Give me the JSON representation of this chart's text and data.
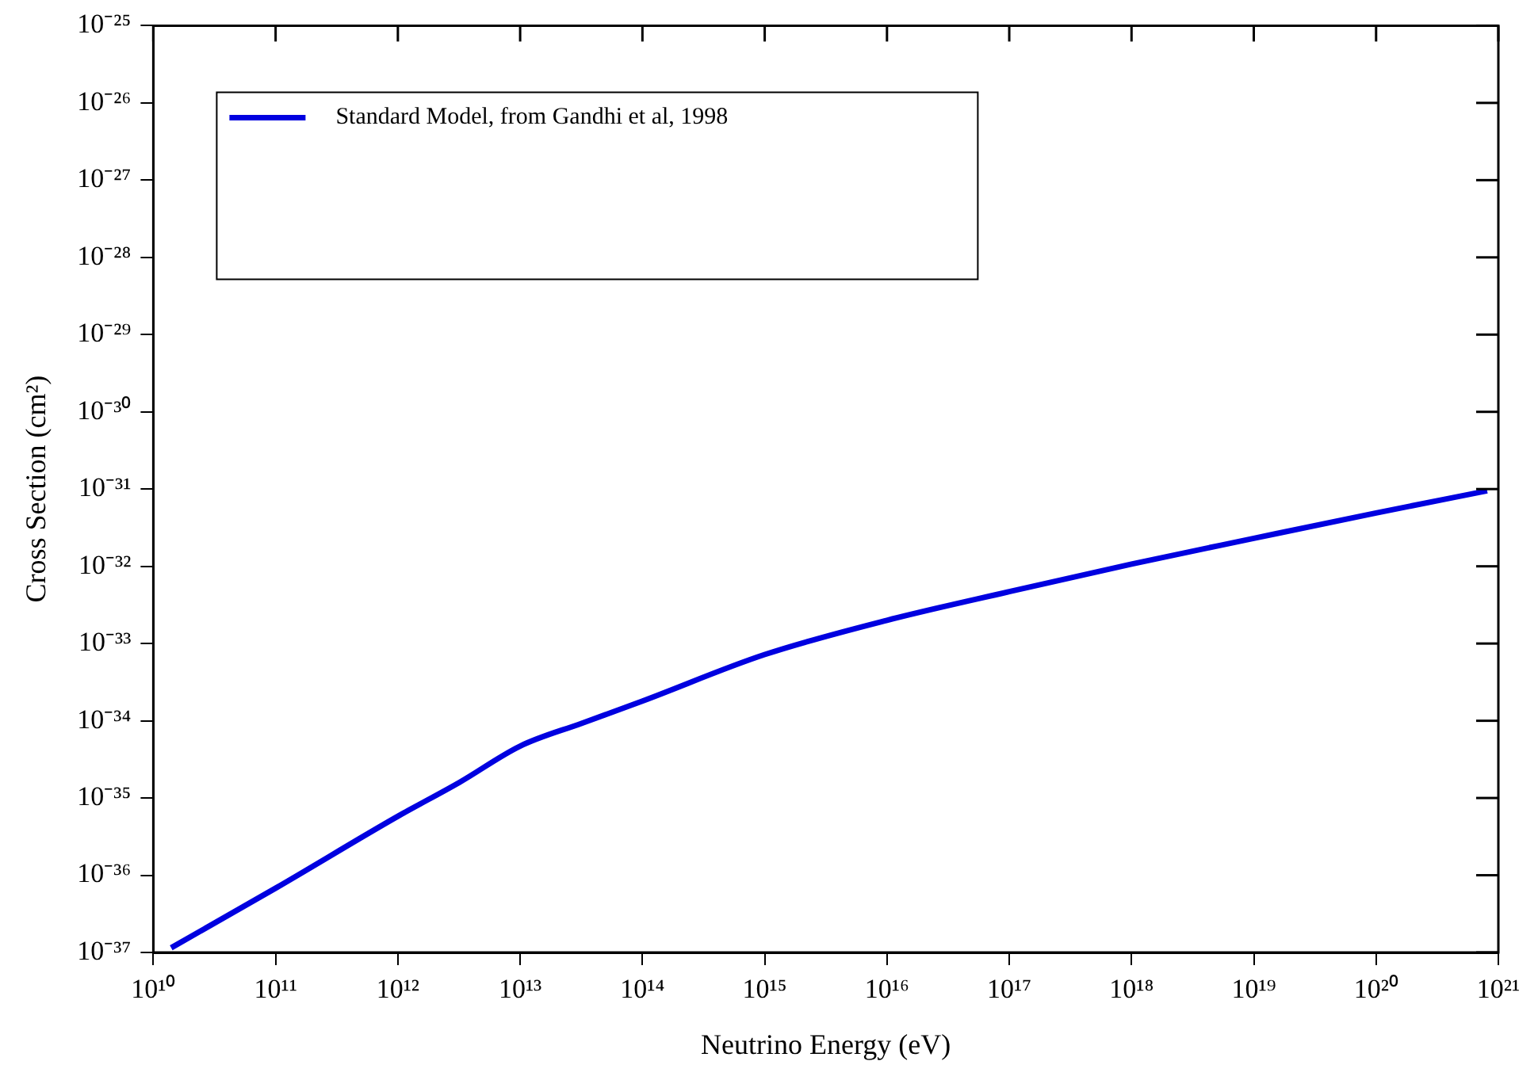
{
  "chart_data": {
    "type": "line",
    "xlabel": "Neutrino Energy (eV)",
    "ylabel": "Cross Section (cm²)",
    "log": "xy",
    "grid": false,
    "legend": "top left",
    "marker": "none",
    "line_style": "solid",
    "xlim": [
      10000000000.0,
      1e+21
    ],
    "ylim": [
      1e-37,
      1e-25
    ],
    "xticks": [
      {
        "value": 10000000000.0,
        "label": "10¹⁰"
      },
      {
        "value": 100000000000.0,
        "label": "10¹¹"
      },
      {
        "value": 1000000000000.0,
        "label": "10¹²"
      },
      {
        "value": 10000000000000.0,
        "label": "10¹³"
      },
      {
        "value": 100000000000000.0,
        "label": "10¹⁴"
      },
      {
        "value": 1000000000000000.0,
        "label": "10¹⁵"
      },
      {
        "value": 1e+16,
        "label": "10¹⁶"
      },
      {
        "value": 1e+17,
        "label": "10¹⁷"
      },
      {
        "value": 1e+18,
        "label": "10¹⁸"
      },
      {
        "value": 1e+19,
        "label": "10¹⁹"
      },
      {
        "value": 1e+20,
        "label": "10²⁰"
      },
      {
        "value": 1e+21,
        "label": "10²¹"
      }
    ],
    "yticks": [
      {
        "value": 1e-37,
        "label": "10⁻³⁷"
      },
      {
        "value": 1e-36,
        "label": "10⁻³⁶"
      },
      {
        "value": 1e-35,
        "label": "10⁻³⁵"
      },
      {
        "value": 1e-34,
        "label": "10⁻³⁴"
      },
      {
        "value": 1e-33,
        "label": "10⁻³³"
      },
      {
        "value": 1e-32,
        "label": "10⁻³²"
      },
      {
        "value": 1e-31,
        "label": "10⁻³¹"
      },
      {
        "value": 1e-30,
        "label": "10⁻³⁰"
      },
      {
        "value": 1e-29,
        "label": "10⁻²⁹"
      },
      {
        "value": 1e-28,
        "label": "10⁻²⁸"
      },
      {
        "value": 1e-27,
        "label": "10⁻²⁷"
      },
      {
        "value": 1e-26,
        "label": "10⁻²⁶"
      },
      {
        "value": 1e-25,
        "label": "10⁻²⁵"
      }
    ],
    "x": [
      14000000000.0,
      100000000000.0,
      1000000000000.0,
      3200000000000.0,
      10000000000000.0,
      32000000000000.0,
      100000000000000.0,
      1000000000000000.0,
      1e+16,
      1e+17,
      1e+18,
      1e+19,
      1e+20,
      8.1e+20
    ],
    "series": [
      {
        "name": "Standard Model, from Gandhi et al, 1998",
        "color": "#0000e0",
        "values": [
          1.15e-37,
          6.8e-37,
          5.8e-36,
          1.6e-35,
          4.7e-35,
          9.3e-35,
          1.8e-34,
          7.2e-34,
          2e-33,
          4.7e-33,
          1.07e-32,
          2.3e-32,
          4.9e-32,
          9.5e-32
        ]
      }
    ]
  }
}
